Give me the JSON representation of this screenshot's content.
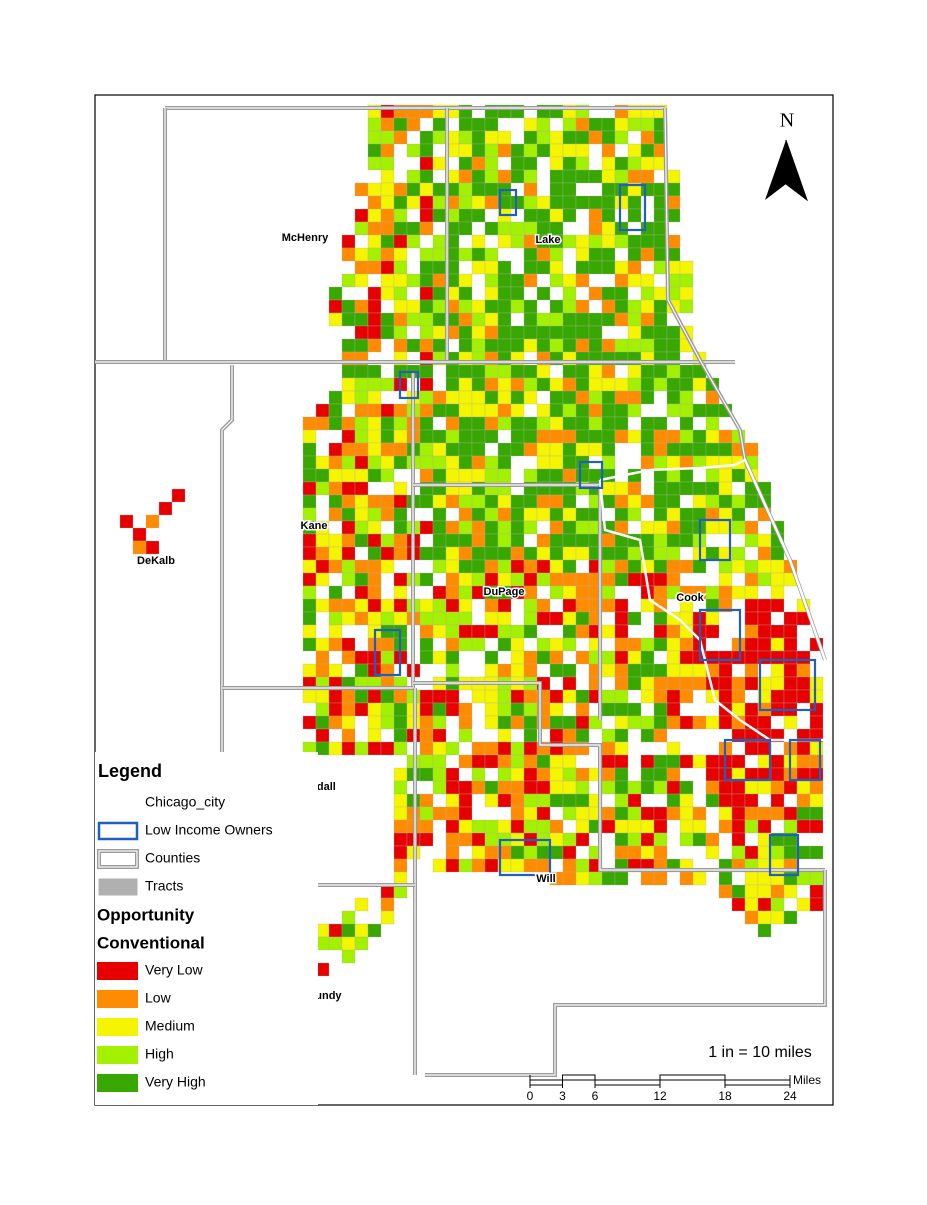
{
  "north_arrow": {
    "label": "N"
  },
  "counties": [
    {
      "label": "McHenry"
    },
    {
      "label": "Lake"
    },
    {
      "label": "DeKalb"
    },
    {
      "label": "Kane"
    },
    {
      "label": "DuPage"
    },
    {
      "label": "Cook"
    },
    {
      "label": "Kendall"
    },
    {
      "label": "Will"
    },
    {
      "label": "Grundy"
    }
  ],
  "legend": {
    "title": "Legend",
    "layers": [
      {
        "label": "Chicago_city",
        "color": "#ffffff"
      },
      {
        "label": "Low Income Owners",
        "color": "#1f5fbf"
      },
      {
        "label": "Counties",
        "color": "#9a9a9a"
      },
      {
        "label": "Tracts",
        "color": "#b0b0b0"
      }
    ],
    "opportunity_title": "Opportunity",
    "opportunity_subtitle": "Conventional",
    "classes": [
      {
        "label": "Very Low",
        "color": "#e60000"
      },
      {
        "label": "Low",
        "color": "#ff8c00"
      },
      {
        "label": "Medium",
        "color": "#f5f500"
      },
      {
        "label": "High",
        "color": "#a3f000"
      },
      {
        "label": "Very High",
        "color": "#38a800"
      }
    ]
  },
  "scale": {
    "text": "1 in = 10 miles",
    "unit": "Miles",
    "ticks": [
      0,
      3,
      6,
      12,
      18,
      24
    ]
  }
}
